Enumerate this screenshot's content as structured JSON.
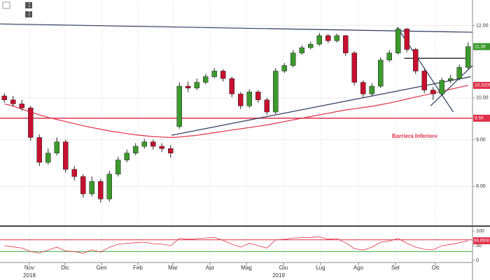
{
  "chart_data": {
    "type": "candlestick",
    "annotation": "Barriera Inferiore",
    "xlim": [
      0,
      54
    ],
    "ylim": [
      7.25,
      12.8
    ],
    "log_scale": true,
    "yticks": [
      {
        "value": 12,
        "label": "12.00"
      },
      {
        "value": 10,
        "label": "10.00"
      },
      {
        "value": 9,
        "label": "9.00"
      },
      {
        "value": 8,
        "label": "8.00"
      }
    ],
    "xticks": [
      {
        "value": 3.36,
        "label": "Nov"
      },
      {
        "value": 7.44,
        "label": "Dic"
      },
      {
        "value": 11.6,
        "label": "Gen"
      },
      {
        "value": 15.76,
        "label": "Feb"
      },
      {
        "value": 19.76,
        "label": "Mar"
      },
      {
        "value": 24,
        "label": "Apr"
      },
      {
        "value": 28.16,
        "label": "Mag"
      },
      {
        "value": 32.4,
        "label": "Giu"
      },
      {
        "value": 36.64,
        "label": "Lug"
      },
      {
        "value": 40.96,
        "label": "Ago"
      },
      {
        "value": 45.2,
        "label": "Set"
      },
      {
        "value": 49.76,
        "label": "Ott"
      }
    ],
    "year_labels": [
      {
        "value": 3.36,
        "label": "2018"
      },
      {
        "value": 31.84,
        "label": "2019"
      }
    ],
    "up_color": "#3c9a2c",
    "down_color": "#c8102e",
    "ohlc": [
      [
        10.05,
        10.12,
        9.88,
        9.95
      ],
      [
        9.95,
        10.05,
        9.78,
        9.85
      ],
      [
        9.85,
        9.95,
        9.68,
        9.75
      ],
      [
        9.75,
        9.8,
        8.98,
        9.05
      ],
      [
        9.05,
        9.12,
        8.42,
        8.5
      ],
      [
        8.5,
        8.8,
        8.45,
        8.7
      ],
      [
        8.7,
        9.05,
        8.65,
        8.95
      ],
      [
        8.95,
        9.0,
        8.28,
        8.35
      ],
      [
        8.35,
        8.42,
        8.12,
        8.2
      ],
      [
        8.2,
        8.25,
        7.78,
        7.85
      ],
      [
        7.85,
        8.2,
        7.8,
        8.1
      ],
      [
        8.1,
        8.15,
        7.68,
        7.75
      ],
      [
        7.75,
        8.32,
        7.7,
        8.25
      ],
      [
        8.25,
        8.62,
        8.2,
        8.55
      ],
      [
        8.55,
        8.78,
        8.5,
        8.7
      ],
      [
        8.7,
        8.92,
        8.65,
        8.85
      ],
      [
        8.85,
        9.02,
        8.8,
        8.95
      ],
      [
        8.95,
        9.0,
        8.78,
        8.85
      ],
      [
        8.85,
        8.92,
        8.72,
        8.8
      ],
      [
        8.8,
        8.88,
        8.6,
        8.7
      ],
      [
        9.3,
        10.4,
        9.25,
        10.3
      ],
      [
        10.3,
        10.42,
        10.15,
        10.25
      ],
      [
        10.25,
        10.5,
        10.2,
        10.4
      ],
      [
        10.4,
        10.62,
        10.35,
        10.55
      ],
      [
        10.55,
        10.78,
        10.5,
        10.7
      ],
      [
        10.7,
        10.75,
        10.42,
        10.5
      ],
      [
        10.5,
        10.55,
        10.02,
        10.1
      ],
      [
        10.1,
        10.15,
        9.72,
        9.8
      ],
      [
        9.8,
        10.22,
        9.75,
        10.15
      ],
      [
        10.15,
        10.2,
        9.88,
        9.95
      ],
      [
        9.95,
        10.0,
        9.58,
        9.65
      ],
      [
        9.65,
        10.78,
        9.6,
        10.7
      ],
      [
        10.7,
        10.92,
        10.65,
        10.85
      ],
      [
        10.85,
        11.28,
        10.8,
        11.2
      ],
      [
        11.2,
        11.42,
        11.15,
        11.35
      ],
      [
        11.35,
        11.52,
        11.3,
        11.45
      ],
      [
        11.45,
        11.78,
        11.4,
        11.7
      ],
      [
        11.7,
        11.75,
        11.48,
        11.55
      ],
      [
        11.55,
        11.76,
        11.5,
        11.7
      ],
      [
        11.7,
        11.72,
        11.12,
        11.2
      ],
      [
        11.2,
        11.25,
        10.32,
        10.4
      ],
      [
        10.4,
        10.45,
        10.02,
        10.1
      ],
      [
        10.1,
        10.38,
        10.05,
        10.3
      ],
      [
        10.3,
        11.08,
        10.25,
        11.0
      ],
      [
        11.0,
        11.28,
        10.95,
        11.2
      ],
      [
        11.2,
        11.95,
        11.15,
        11.9
      ],
      [
        11.9,
        11.92,
        11.22,
        11.3
      ],
      [
        11.3,
        11.35,
        10.62,
        10.7
      ],
      [
        10.7,
        10.75,
        10.12,
        10.2
      ],
      [
        10.2,
        10.28,
        9.95,
        10.1
      ],
      [
        10.1,
        10.52,
        10.05,
        10.45
      ],
      [
        10.45,
        10.6,
        10.38,
        10.5
      ],
      [
        10.5,
        10.88,
        10.45,
        10.8
      ],
      [
        10.8,
        11.5,
        10.75,
        11.38
      ]
    ],
    "last_label": "11.38",
    "ma": {
      "color": "#e0304a",
      "label": "10.3205",
      "values": [
        9.85,
        9.8,
        9.72,
        9.65,
        9.58,
        9.52,
        9.47,
        9.42,
        9.37,
        9.32,
        9.28,
        9.24,
        9.2,
        9.17,
        9.14,
        9.11,
        9.09,
        9.07,
        9.06,
        9.05,
        9.06,
        9.08,
        9.1,
        9.13,
        9.16,
        9.19,
        9.22,
        9.25,
        9.28,
        9.31,
        9.34,
        9.38,
        9.42,
        9.46,
        9.5,
        9.54,
        9.58,
        9.62,
        9.66,
        9.7,
        9.73,
        9.76,
        9.79,
        9.83,
        9.87,
        9.92,
        9.97,
        10.02,
        10.07,
        10.12,
        10.17,
        10.22,
        10.27,
        10.3205
      ]
    },
    "barrier": {
      "value": 9.5,
      "label": "9.50",
      "color": "#e0304a"
    },
    "trendlines": [
      {
        "color": "#2a3a5c",
        "points": [
          [
            0,
            12.05
          ],
          [
            54,
            11.8
          ]
        ]
      },
      {
        "color": "#2a3a5c",
        "points": [
          [
            19.6,
            9.1
          ],
          [
            53.8,
            10.55
          ]
        ]
      },
      {
        "color": "#2a3a5c",
        "points": [
          [
            45.4,
            11.95
          ],
          [
            51.8,
            9.65
          ]
        ]
      },
      {
        "color": "#111111",
        "points": [
          [
            46.2,
            11.05
          ],
          [
            53.8,
            11.05
          ]
        ]
      },
      {
        "color": "#2a3a5c",
        "points": [
          [
            49.2,
            9.8
          ],
          [
            54,
            10.85
          ]
        ]
      }
    ],
    "rsi": {
      "color": "#e0304a",
      "ylim": [
        0,
        100
      ],
      "levels": [
        {
          "value": 70,
          "color": "#e0304a"
        },
        {
          "value": 30,
          "color": "#3cb043"
        }
      ],
      "yticks": [
        100,
        50,
        0
      ],
      "label": "66.8508",
      "values": [
        50,
        46,
        42,
        30,
        25,
        35,
        45,
        32,
        30,
        24,
        36,
        28,
        45,
        55,
        58,
        60,
        62,
        57,
        55,
        50,
        75,
        72,
        74,
        76,
        78,
        68,
        55,
        45,
        58,
        50,
        42,
        70,
        72,
        76,
        77,
        78,
        80,
        72,
        74,
        60,
        40,
        35,
        45,
        62,
        66,
        75,
        58,
        45,
        38,
        36,
        50,
        54,
        60,
        66.8508
      ]
    }
  }
}
